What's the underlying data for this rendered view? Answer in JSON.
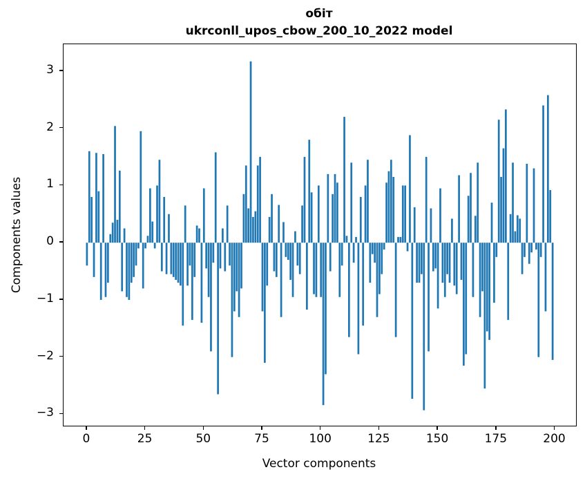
{
  "figure": {
    "title_line1": "обіт",
    "title_line2": "ukrconll_upos_cbow_200_10_2022 model"
  },
  "chart_data": {
    "type": "bar",
    "title": "обіт — ukrconll_upos_cbow_200_10_2022 model",
    "xlabel": "Vector components",
    "ylabel": "Components values",
    "bar_color": "#1f77b4",
    "grid": false,
    "legend": null,
    "n_components": 200,
    "xlim": [
      -10,
      209
    ],
    "ylim": [
      -3.2,
      3.47
    ],
    "xticks": [
      0,
      25,
      50,
      75,
      100,
      125,
      150,
      175,
      200
    ],
    "yticks": [
      -3,
      -2,
      -1,
      0,
      1,
      2,
      3
    ],
    "values": [
      -0.4,
      1.6,
      0.8,
      -0.6,
      1.57,
      0.9,
      -1.0,
      1.55,
      -0.95,
      -0.7,
      0.15,
      0.35,
      2.04,
      0.4,
      1.26,
      -0.85,
      0.25,
      -0.95,
      -1.0,
      -0.7,
      -0.6,
      -0.4,
      -0.1,
      1.95,
      -0.8,
      -0.1,
      0.12,
      0.95,
      0.37,
      -0.1,
      1.0,
      1.45,
      -0.5,
      0.8,
      -0.55,
      0.5,
      -0.55,
      -0.6,
      -0.65,
      -0.7,
      -0.75,
      -1.45,
      0.65,
      -0.75,
      -0.4,
      -1.35,
      -0.6,
      0.3,
      0.25,
      -1.4,
      0.95,
      -0.45,
      -0.95,
      -1.9,
      -0.35,
      1.58,
      -2.65,
      -0.45,
      0.25,
      -0.5,
      0.65,
      -0.4,
      -2.0,
      -1.2,
      -0.85,
      -1.3,
      -0.8,
      0.85,
      1.35,
      0.6,
      3.17,
      0.45,
      0.55,
      1.35,
      1.5,
      -1.2,
      -2.1,
      -0.75,
      0.45,
      0.85,
      -0.5,
      -0.6,
      0.66,
      -1.3,
      0.36,
      -0.25,
      -0.3,
      -0.65,
      -0.95,
      0.2,
      -0.4,
      -0.55,
      0.65,
      1.5,
      -1.17,
      1.8,
      0.88,
      -0.9,
      -0.95,
      1.0,
      -0.95,
      -2.84,
      -2.3,
      1.2,
      -0.5,
      0.85,
      1.2,
      1.05,
      -0.95,
      -0.4,
      2.2,
      0.12,
      -1.65,
      1.4,
      -0.35,
      0.1,
      -1.95,
      0.8,
      -1.45,
      1.0,
      1.45,
      -0.7,
      -0.2,
      -0.35,
      -1.3,
      -0.9,
      -0.55,
      -0.12,
      1.05,
      1.25,
      1.45,
      1.15,
      -1.65,
      0.1,
      0.1,
      1.0,
      1.0,
      -0.15,
      1.88,
      -2.73,
      0.62,
      -0.7,
      -0.7,
      -0.55,
      -2.93,
      1.5,
      -1.9,
      0.6,
      -0.5,
      -0.45,
      -1.15,
      0.95,
      -0.7,
      -0.95,
      -0.55,
      -0.7,
      0.42,
      -0.75,
      -0.9,
      1.18,
      -0.65,
      -2.15,
      -1.95,
      0.82,
      1.22,
      -0.95,
      0.47,
      1.4,
      -1.3,
      -0.85,
      -2.55,
      -1.55,
      -1.7,
      0.7,
      -1.05,
      -0.25,
      2.15,
      1.15,
      1.65,
      2.33,
      -1.35,
      0.5,
      1.4,
      0.2,
      0.48,
      0.42,
      -0.55,
      -0.25,
      1.38,
      -0.37,
      -0.17,
      1.3,
      -0.12,
      -2.0,
      -0.25,
      2.4,
      -1.2,
      2.58,
      0.92,
      -2.05
    ]
  }
}
